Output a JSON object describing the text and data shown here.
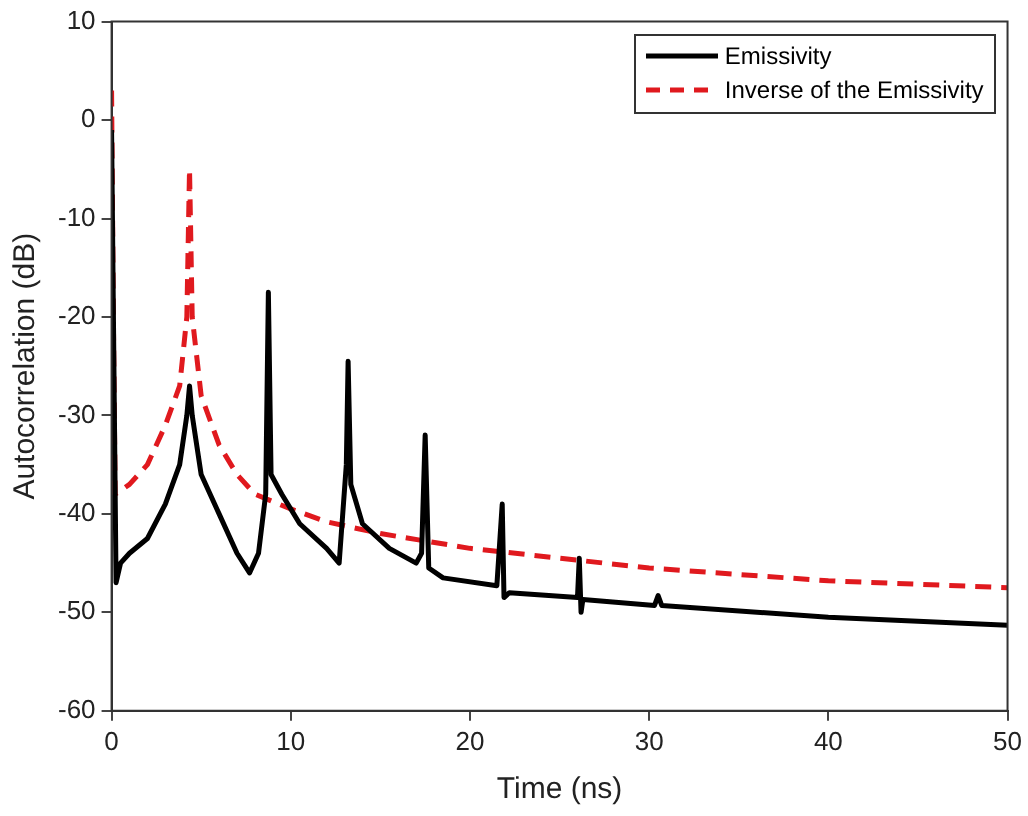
{
  "chart_data": {
    "type": "line",
    "xlabel": "Time (ns)",
    "ylabel": "Autocorrelation (dB)",
    "xlim": [
      0,
      50
    ],
    "xticks": [
      0,
      10,
      20,
      30,
      40,
      50
    ],
    "ylim": [
      -60,
      10
    ],
    "yticks": [
      -60,
      -50,
      -40,
      -30,
      -20,
      -10,
      0,
      10
    ],
    "grid": false,
    "legend": "top right",
    "series": [
      {
        "name": "Emissivity",
        "color": "#000000",
        "line_style": "solid",
        "x": [
          0,
          0.25,
          0.5,
          1,
          2,
          3,
          3.8,
          4.2,
          4.35,
          4.5,
          5,
          6,
          7,
          7.7,
          8.2,
          8.6,
          8.75,
          8.9,
          9.5,
          10.5,
          12,
          12.7,
          13.1,
          13.2,
          13.35,
          14,
          15.5,
          17,
          17.3,
          17.5,
          17.7,
          18.5,
          21.5,
          21.8,
          21.9,
          22.2,
          26,
          26.1,
          26.2,
          26.3,
          30.3,
          30.5,
          30.7,
          40,
          50
        ],
        "values": [
          -1,
          -47,
          -45,
          -44,
          -42.5,
          -39,
          -35,
          -30,
          -27,
          -30,
          -36,
          -40,
          -44,
          -46,
          -44,
          -38,
          -17.5,
          -36,
          -38,
          -41,
          -43.5,
          -45,
          -35,
          -24.5,
          -37,
          -41,
          -43.5,
          -45,
          -44,
          -32,
          -45.5,
          -46.5,
          -47.3,
          -39,
          -48.5,
          -48,
          -48.5,
          -44.5,
          -50,
          -48.7,
          -49.3,
          -48.3,
          -49.3,
          -50.5,
          -51.3
        ]
      },
      {
        "name": "Inverse of the Emissivity",
        "color": "#e0191e",
        "line_style": "dashed",
        "x": [
          0,
          0.1,
          0.2,
          1,
          2,
          3,
          3.8,
          4.2,
          4.35,
          4.5,
          5,
          6,
          7,
          8,
          10,
          12,
          15,
          20,
          25,
          30,
          40,
          50
        ],
        "values": [
          3,
          -20,
          -38,
          -37,
          -35,
          -31,
          -27,
          -20,
          -5,
          -20,
          -28,
          -33,
          -36,
          -38,
          -39.5,
          -40.8,
          -42,
          -43.5,
          -44.5,
          -45.5,
          -46.8,
          -47.5
        ]
      }
    ]
  }
}
